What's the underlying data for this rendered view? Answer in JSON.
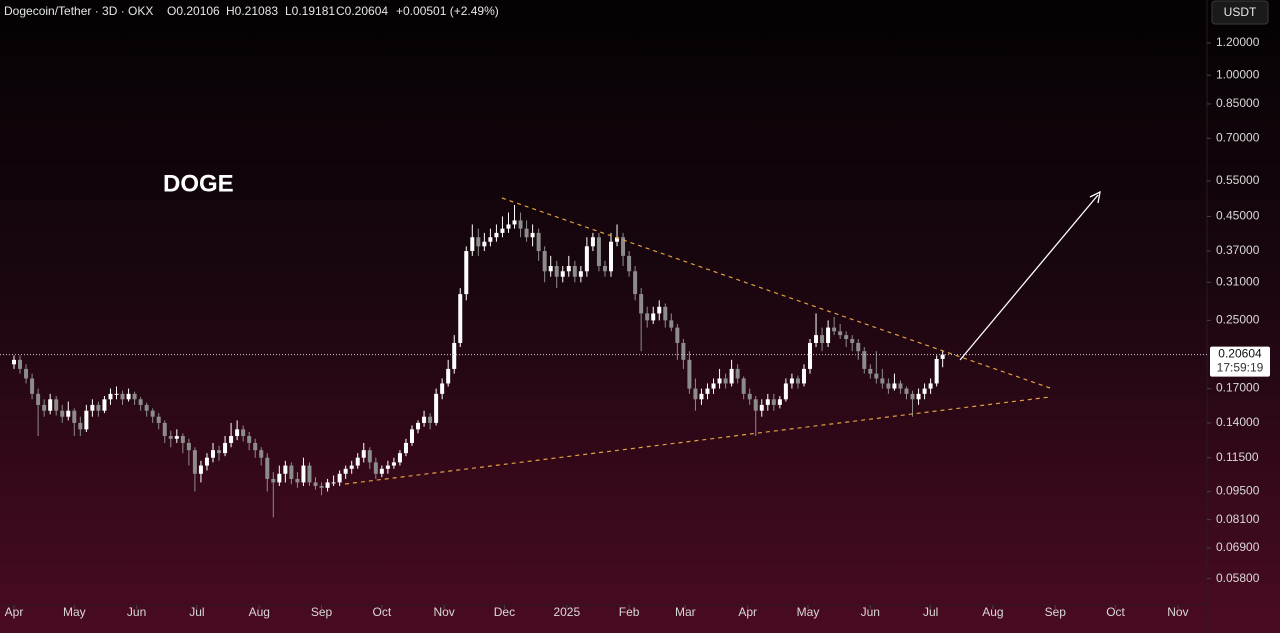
{
  "header": {
    "symbol": "Dogecoin/Tether · 3D · OKX",
    "open": "O0.20106",
    "high": "H0.21083",
    "low": "L0.19181",
    "close": "C0.20604",
    "change": "+0.00501 (+2.49%)"
  },
  "currency": "USDT",
  "chart_data": {
    "type": "candlestick",
    "annotation": "DOGE",
    "log_scale": true,
    "up_color": "#ffffff",
    "down_color": "#8c8c8c",
    "price_line": 0.20604,
    "countdown": "17:59:19",
    "ylim": [
      0.05,
      1.53
    ],
    "yticks": [
      {
        "value": 1.2,
        "label": "1.20000"
      },
      {
        "value": 1.0,
        "label": "1.00000"
      },
      {
        "value": 0.85,
        "label": "0.85000"
      },
      {
        "value": 0.7,
        "label": "0.70000"
      },
      {
        "value": 0.55,
        "label": "0.55000"
      },
      {
        "value": 0.45,
        "label": "0.45000"
      },
      {
        "value": 0.37,
        "label": "0.37000"
      },
      {
        "value": 0.31,
        "label": "0.31000"
      },
      {
        "value": 0.25,
        "label": "0.25000"
      },
      {
        "value": 0.17,
        "label": "0.17000"
      },
      {
        "value": 0.14,
        "label": "0.14000"
      },
      {
        "value": 0.115,
        "label": "0.11500"
      },
      {
        "value": 0.095,
        "label": "0.09500"
      },
      {
        "value": 0.081,
        "label": "0.08100"
      },
      {
        "value": 0.069,
        "label": "0.06900"
      },
      {
        "value": 0.058,
        "label": "0.05800"
      }
    ],
    "xlim": [
      -2.32,
      197.5
    ],
    "xticks": [
      {
        "value": 0,
        "label": "Apr"
      },
      {
        "value": 10,
        "label": "May"
      },
      {
        "value": 20.33,
        "label": "Jun"
      },
      {
        "value": 30.33,
        "label": "Jul"
      },
      {
        "value": 40.67,
        "label": "Aug"
      },
      {
        "value": 51,
        "label": "Sep"
      },
      {
        "value": 61,
        "label": "Oct"
      },
      {
        "value": 71.33,
        "label": "Nov"
      },
      {
        "value": 81.33,
        "label": "Dec"
      },
      {
        "value": 91.67,
        "label": "2025"
      },
      {
        "value": 102,
        "label": "Feb"
      },
      {
        "value": 111.33,
        "label": "Mar"
      },
      {
        "value": 121.67,
        "label": "Apr"
      },
      {
        "value": 131.67,
        "label": "May"
      },
      {
        "value": 142,
        "label": "Jun"
      },
      {
        "value": 152,
        "label": "Jul"
      },
      {
        "value": 162.33,
        "label": "Aug"
      },
      {
        "value": 172.67,
        "label": "Sep"
      },
      {
        "value": 182.67,
        "label": "Oct"
      },
      {
        "value": 193,
        "label": "Nov"
      }
    ],
    "candles": [
      [
        0.195,
        0.205,
        0.19,
        0.2
      ],
      [
        0.2,
        0.205,
        0.185,
        0.19
      ],
      [
        0.19,
        0.195,
        0.175,
        0.18
      ],
      [
        0.18,
        0.185,
        0.16,
        0.165
      ],
      [
        0.165,
        0.17,
        0.13,
        0.155
      ],
      [
        0.155,
        0.16,
        0.145,
        0.15
      ],
      [
        0.15,
        0.165,
        0.147,
        0.16
      ],
      [
        0.16,
        0.163,
        0.146,
        0.15
      ],
      [
        0.15,
        0.155,
        0.14,
        0.145
      ],
      [
        0.145,
        0.158,
        0.142,
        0.15
      ],
      [
        0.15,
        0.152,
        0.13,
        0.14
      ],
      [
        0.14,
        0.145,
        0.13,
        0.135
      ],
      [
        0.135,
        0.155,
        0.133,
        0.15
      ],
      [
        0.15,
        0.16,
        0.145,
        0.155
      ],
      [
        0.155,
        0.158,
        0.145,
        0.15
      ],
      [
        0.15,
        0.163,
        0.148,
        0.16
      ],
      [
        0.16,
        0.17,
        0.155,
        0.165
      ],
      [
        0.165,
        0.172,
        0.16,
        0.165
      ],
      [
        0.165,
        0.168,
        0.155,
        0.16
      ],
      [
        0.16,
        0.17,
        0.158,
        0.165
      ],
      [
        0.165,
        0.167,
        0.155,
        0.16
      ],
      [
        0.16,
        0.162,
        0.15,
        0.155
      ],
      [
        0.155,
        0.157,
        0.145,
        0.15
      ],
      [
        0.15,
        0.152,
        0.14,
        0.145
      ],
      [
        0.145,
        0.148,
        0.135,
        0.14
      ],
      [
        0.14,
        0.142,
        0.125,
        0.13
      ],
      [
        0.13,
        0.134,
        0.122,
        0.128
      ],
      [
        0.128,
        0.135,
        0.125,
        0.13
      ],
      [
        0.13,
        0.132,
        0.118,
        0.125
      ],
      [
        0.125,
        0.128,
        0.11,
        0.12
      ],
      [
        0.12,
        0.122,
        0.095,
        0.105
      ],
      [
        0.105,
        0.113,
        0.1,
        0.11
      ],
      [
        0.11,
        0.118,
        0.107,
        0.115
      ],
      [
        0.115,
        0.125,
        0.112,
        0.12
      ],
      [
        0.12,
        0.123,
        0.113,
        0.118
      ],
      [
        0.118,
        0.13,
        0.116,
        0.125
      ],
      [
        0.125,
        0.14,
        0.122,
        0.13
      ],
      [
        0.13,
        0.142,
        0.127,
        0.135
      ],
      [
        0.135,
        0.138,
        0.126,
        0.13
      ],
      [
        0.13,
        0.133,
        0.12,
        0.125
      ],
      [
        0.125,
        0.128,
        0.115,
        0.12
      ],
      [
        0.12,
        0.122,
        0.11,
        0.115
      ],
      [
        0.115,
        0.118,
        0.095,
        0.102
      ],
      [
        0.102,
        0.106,
        0.082,
        0.1
      ],
      [
        0.1,
        0.11,
        0.098,
        0.105
      ],
      [
        0.105,
        0.113,
        0.1,
        0.11
      ],
      [
        0.11,
        0.112,
        0.099,
        0.102
      ],
      [
        0.102,
        0.106,
        0.097,
        0.1
      ],
      [
        0.1,
        0.115,
        0.098,
        0.11
      ],
      [
        0.11,
        0.112,
        0.098,
        0.1
      ],
      [
        0.1,
        0.103,
        0.096,
        0.098
      ],
      [
        0.098,
        0.1,
        0.093,
        0.097
      ],
      [
        0.097,
        0.102,
        0.095,
        0.1
      ],
      [
        0.1,
        0.104,
        0.098,
        0.1
      ],
      [
        0.1,
        0.107,
        0.098,
        0.105
      ],
      [
        0.105,
        0.11,
        0.102,
        0.108
      ],
      [
        0.108,
        0.113,
        0.105,
        0.11
      ],
      [
        0.11,
        0.118,
        0.108,
        0.115
      ],
      [
        0.115,
        0.125,
        0.112,
        0.12
      ],
      [
        0.12,
        0.122,
        0.108,
        0.112
      ],
      [
        0.112,
        0.115,
        0.102,
        0.105
      ],
      [
        0.105,
        0.11,
        0.103,
        0.108
      ],
      [
        0.108,
        0.113,
        0.105,
        0.11
      ],
      [
        0.11,
        0.115,
        0.108,
        0.112
      ],
      [
        0.112,
        0.12,
        0.11,
        0.118
      ],
      [
        0.118,
        0.128,
        0.116,
        0.125
      ],
      [
        0.125,
        0.138,
        0.123,
        0.135
      ],
      [
        0.135,
        0.142,
        0.132,
        0.14
      ],
      [
        0.14,
        0.15,
        0.137,
        0.145
      ],
      [
        0.145,
        0.148,
        0.135,
        0.14
      ],
      [
        0.14,
        0.17,
        0.138,
        0.165
      ],
      [
        0.165,
        0.18,
        0.16,
        0.175
      ],
      [
        0.175,
        0.2,
        0.172,
        0.19
      ],
      [
        0.19,
        0.23,
        0.185,
        0.22
      ],
      [
        0.22,
        0.3,
        0.215,
        0.29
      ],
      [
        0.29,
        0.38,
        0.28,
        0.37
      ],
      [
        0.37,
        0.43,
        0.36,
        0.4
      ],
      [
        0.4,
        0.42,
        0.36,
        0.38
      ],
      [
        0.38,
        0.41,
        0.37,
        0.39
      ],
      [
        0.39,
        0.42,
        0.38,
        0.4
      ],
      [
        0.4,
        0.43,
        0.39,
        0.41
      ],
      [
        0.41,
        0.45,
        0.4,
        0.42
      ],
      [
        0.42,
        0.46,
        0.41,
        0.43
      ],
      [
        0.43,
        0.48,
        0.42,
        0.44
      ],
      [
        0.44,
        0.46,
        0.4,
        0.42
      ],
      [
        0.42,
        0.44,
        0.39,
        0.4
      ],
      [
        0.4,
        0.43,
        0.38,
        0.41
      ],
      [
        0.41,
        0.42,
        0.35,
        0.37
      ],
      [
        0.37,
        0.38,
        0.31,
        0.33
      ],
      [
        0.33,
        0.36,
        0.32,
        0.34
      ],
      [
        0.34,
        0.35,
        0.3,
        0.32
      ],
      [
        0.32,
        0.34,
        0.31,
        0.33
      ],
      [
        0.33,
        0.36,
        0.32,
        0.34
      ],
      [
        0.34,
        0.35,
        0.31,
        0.32
      ],
      [
        0.32,
        0.34,
        0.31,
        0.33
      ],
      [
        0.33,
        0.4,
        0.32,
        0.38
      ],
      [
        0.38,
        0.41,
        0.37,
        0.4
      ],
      [
        0.4,
        0.41,
        0.33,
        0.34
      ],
      [
        0.34,
        0.35,
        0.32,
        0.33
      ],
      [
        0.33,
        0.41,
        0.32,
        0.39
      ],
      [
        0.39,
        0.43,
        0.38,
        0.4
      ],
      [
        0.4,
        0.41,
        0.34,
        0.36
      ],
      [
        0.36,
        0.37,
        0.32,
        0.33
      ],
      [
        0.33,
        0.34,
        0.28,
        0.29
      ],
      [
        0.29,
        0.3,
        0.21,
        0.26
      ],
      [
        0.26,
        0.27,
        0.24,
        0.25
      ],
      [
        0.25,
        0.27,
        0.245,
        0.26
      ],
      [
        0.26,
        0.28,
        0.25,
        0.27
      ],
      [
        0.27,
        0.275,
        0.24,
        0.25
      ],
      [
        0.25,
        0.26,
        0.235,
        0.24
      ],
      [
        0.24,
        0.245,
        0.2,
        0.22
      ],
      [
        0.22,
        0.225,
        0.19,
        0.2
      ],
      [
        0.2,
        0.21,
        0.165,
        0.17
      ],
      [
        0.17,
        0.18,
        0.15,
        0.16
      ],
      [
        0.16,
        0.17,
        0.155,
        0.165
      ],
      [
        0.165,
        0.175,
        0.16,
        0.17
      ],
      [
        0.17,
        0.18,
        0.165,
        0.175
      ],
      [
        0.175,
        0.19,
        0.17,
        0.18
      ],
      [
        0.18,
        0.185,
        0.17,
        0.175
      ],
      [
        0.175,
        0.2,
        0.172,
        0.19
      ],
      [
        0.19,
        0.195,
        0.175,
        0.18
      ],
      [
        0.18,
        0.182,
        0.16,
        0.165
      ],
      [
        0.165,
        0.17,
        0.155,
        0.16
      ],
      [
        0.16,
        0.163,
        0.13,
        0.15
      ],
      [
        0.15,
        0.16,
        0.145,
        0.155
      ],
      [
        0.155,
        0.165,
        0.15,
        0.16
      ],
      [
        0.16,
        0.165,
        0.15,
        0.155
      ],
      [
        0.155,
        0.163,
        0.152,
        0.16
      ],
      [
        0.16,
        0.18,
        0.158,
        0.175
      ],
      [
        0.175,
        0.185,
        0.17,
        0.18
      ],
      [
        0.18,
        0.183,
        0.17,
        0.175
      ],
      [
        0.175,
        0.195,
        0.172,
        0.19
      ],
      [
        0.19,
        0.225,
        0.185,
        0.22
      ],
      [
        0.22,
        0.26,
        0.215,
        0.23
      ],
      [
        0.23,
        0.24,
        0.21,
        0.22
      ],
      [
        0.22,
        0.25,
        0.215,
        0.24
      ],
      [
        0.24,
        0.255,
        0.23,
        0.235
      ],
      [
        0.235,
        0.245,
        0.225,
        0.23
      ],
      [
        0.23,
        0.235,
        0.215,
        0.225
      ],
      [
        0.225,
        0.23,
        0.21,
        0.22
      ],
      [
        0.22,
        0.225,
        0.2,
        0.21
      ],
      [
        0.21,
        0.215,
        0.185,
        0.19
      ],
      [
        0.19,
        0.195,
        0.18,
        0.185
      ],
      [
        0.185,
        0.21,
        0.175,
        0.18
      ],
      [
        0.18,
        0.19,
        0.17,
        0.175
      ],
      [
        0.175,
        0.18,
        0.165,
        0.17
      ],
      [
        0.17,
        0.185,
        0.168,
        0.175
      ],
      [
        0.175,
        0.178,
        0.165,
        0.17
      ],
      [
        0.17,
        0.172,
        0.16,
        0.165
      ],
      [
        0.165,
        0.168,
        0.145,
        0.16
      ],
      [
        0.16,
        0.17,
        0.155,
        0.165
      ],
      [
        0.165,
        0.175,
        0.16,
        0.17
      ],
      [
        0.17,
        0.18,
        0.165,
        0.175
      ],
      [
        0.175,
        0.205,
        0.172,
        0.201
      ],
      [
        0.20106,
        0.21083,
        0.19181,
        0.20604
      ]
    ]
  }
}
